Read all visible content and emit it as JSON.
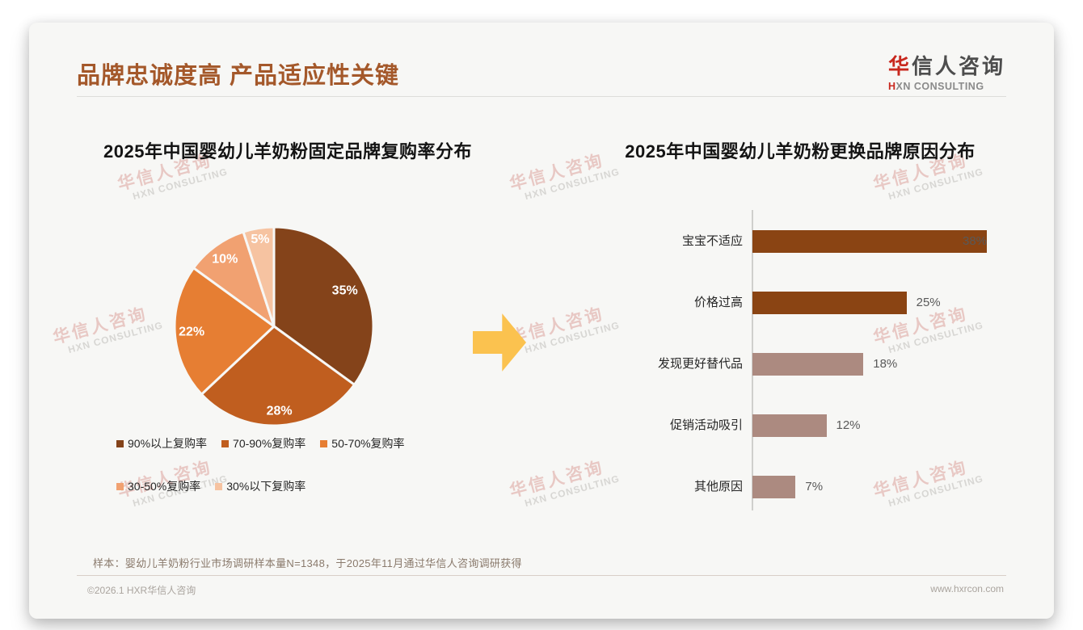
{
  "header": {
    "title": "品牌忠诚度高 产品适应性关键",
    "logo": {
      "cn_accent": "华",
      "cn_rest": "信人咨询",
      "en_accent": "H",
      "en_rest": "XN CONSULTING"
    }
  },
  "watermark": {
    "cn": "华信人咨询",
    "en": "HXN CONSULTING"
  },
  "chart_data": [
    {
      "type": "pie",
      "title": "2025年中国婴幼儿羊奶粉固定品牌复购率分布",
      "labels": [
        "90%以上复购率",
        "70-90%复购率",
        "50-70%复购率",
        "30-50%复购率",
        "30%以下复购率"
      ],
      "values": [
        35,
        28,
        22,
        10,
        5
      ],
      "value_labels": [
        "35%",
        "28%",
        "22%",
        "10%",
        "5%"
      ],
      "colors": [
        "#84431A",
        "#C05E1F",
        "#E67E33",
        "#F1A171",
        "#F6C3A1"
      ],
      "start_angle_deg": 0,
      "direction": "clockwise",
      "legend_position": "below"
    },
    {
      "type": "bar",
      "orientation": "horizontal",
      "title": "2025年中国婴幼儿羊奶粉更换品牌原因分布",
      "categories": [
        "宝宝不适应",
        "价格过高",
        "发现更好替代品",
        "促销活动吸引",
        "其他原因"
      ],
      "values": [
        38,
        25,
        18,
        12,
        7
      ],
      "value_labels": [
        "38%",
        "25%",
        "18%",
        "12%",
        "7%"
      ],
      "bar_colors": [
        "#8A4413",
        "#8A4413",
        "#AC8A80",
        "#AC8A80",
        "#AC8A80"
      ],
      "xlim": [
        0,
        40
      ],
      "grid": false
    }
  ],
  "arrow_color": "#FBC24F",
  "footer": {
    "sample_note": "样本：婴幼儿羊奶粉行业市场调研样本量N=1348，于2025年11月通过华信人咨询调研获得",
    "copyright": "©2026.1 HXR华信人咨询",
    "website": "www.hxrcon.com"
  }
}
